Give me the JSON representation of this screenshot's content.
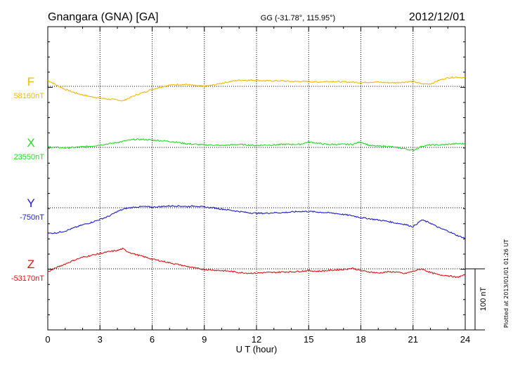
{
  "header": {
    "station": "Gnangara (GNA)  [GA]",
    "coords": "GG (-31.78°, 115.95°)",
    "date": "2012/12/01"
  },
  "footer": {
    "plotted": "Plotted at 2013/01/01 01:26 UT",
    "scale_label": "100 nT"
  },
  "chart_data": {
    "type": "line",
    "title": "Gnangara (GNA)  [GA]",
    "xlabel": "U T (hour)",
    "ylabel": "",
    "xlim": [
      0,
      24
    ],
    "xticks": [
      "0",
      "3",
      "6",
      "9",
      "12",
      "15",
      "18",
      "21",
      "24"
    ],
    "grid": true,
    "y_scale": "100 nT per scale bar, each component offset by its baseline",
    "series": [
      {
        "name": "F",
        "baseline_label": "58160nT",
        "baseline_nT": 58160,
        "color": "#f5b800",
        "x": [
          0,
          0.5,
          1,
          1.5,
          2,
          2.5,
          3,
          3.5,
          4,
          4.3,
          4.6,
          5,
          5.5,
          6,
          6.5,
          7,
          7.5,
          8,
          8.5,
          9,
          9.5,
          10,
          10.5,
          11,
          11.5,
          12,
          12.5,
          13,
          13.5,
          14,
          14.5,
          15,
          15.5,
          16,
          16.5,
          17,
          17.5,
          18,
          18.5,
          19,
          19.5,
          20,
          20.5,
          21,
          21.5,
          22,
          22.5,
          23,
          23.5,
          24
        ],
        "y": [
          10,
          2,
          -5,
          -10,
          -14,
          -17,
          -19,
          -21,
          -22,
          -24,
          -20,
          -15,
          -10,
          -5,
          -1,
          2,
          3,
          3,
          1,
          0,
          2,
          5,
          8,
          10,
          10,
          10,
          9,
          9,
          9,
          8,
          8,
          8,
          7,
          8,
          8,
          7,
          7,
          6,
          7,
          7,
          6,
          6,
          7,
          8,
          4,
          4,
          10,
          14,
          15,
          14
        ]
      },
      {
        "name": "X",
        "baseline_label": "23550nT",
        "baseline_nT": 23550,
        "color": "#22dd22",
        "x": [
          0,
          0.5,
          1,
          1.5,
          2,
          2.5,
          3,
          3.5,
          4,
          4.5,
          5,
          5.5,
          6,
          6.5,
          7,
          7.5,
          8,
          8.5,
          9,
          9.5,
          10,
          10.5,
          11,
          11.5,
          12,
          12.5,
          13,
          13.5,
          14,
          14.5,
          15,
          15.5,
          16,
          16.5,
          17,
          17.5,
          18,
          18.5,
          19,
          19.5,
          20,
          20.5,
          21,
          21.5,
          22,
          22.5,
          23,
          23.5,
          24
        ],
        "y": [
          1,
          0,
          -1,
          0,
          1,
          2,
          4,
          6,
          8,
          11,
          13,
          13,
          12,
          11,
          10,
          8,
          6,
          5,
          4,
          4,
          3,
          4,
          5,
          4,
          3,
          4,
          4,
          5,
          5,
          5,
          9,
          7,
          5,
          5,
          5,
          5,
          9,
          3,
          2,
          2,
          0,
          -2,
          -5,
          2,
          4,
          4,
          5,
          6,
          6
        ]
      },
      {
        "name": "Y",
        "baseline_label": "-750nT",
        "baseline_nT": -750,
        "color": "#1c1ccc",
        "x": [
          0,
          0.5,
          1,
          1.5,
          2,
          2.5,
          3,
          3.5,
          4,
          4.5,
          5,
          5.5,
          6,
          6.5,
          7,
          7.5,
          8,
          8.5,
          9,
          9.5,
          10,
          10.5,
          11,
          11.5,
          12,
          12.5,
          13,
          13.5,
          14,
          14.5,
          15,
          15.5,
          16,
          16.5,
          17,
          17.5,
          18,
          18.5,
          19,
          19.5,
          20,
          20.5,
          21,
          21.5,
          22,
          22.5,
          23,
          23.5,
          24
        ],
        "y": [
          -42,
          -41,
          -38,
          -33,
          -28,
          -24,
          -19,
          -14,
          -6,
          -1,
          1,
          2,
          1,
          2,
          3,
          3,
          2,
          3,
          1,
          0,
          -2,
          -4,
          -6,
          -8,
          -9,
          -9,
          -8,
          -8,
          -7,
          -6,
          -6,
          -7,
          -8,
          -9,
          -11,
          -13,
          -16,
          -18,
          -20,
          -22,
          -25,
          -27,
          -31,
          -20,
          -25,
          -33,
          -38,
          -45,
          -50
        ]
      },
      {
        "name": "Z",
        "baseline_label": "-53170nT",
        "baseline_nT": -53170,
        "color": "#dd1111",
        "x": [
          0,
          0.5,
          1,
          1.5,
          2,
          2.5,
          3,
          3.5,
          4,
          4.3,
          4.6,
          5,
          5.5,
          6,
          6.5,
          7,
          7.5,
          8,
          8.5,
          9,
          9.5,
          10,
          10.5,
          11,
          11.5,
          12,
          12.5,
          13,
          13.5,
          14,
          14.5,
          15,
          15.5,
          16,
          16.5,
          17,
          17.5,
          18,
          18.5,
          19,
          19.5,
          20,
          20.5,
          21,
          21.5,
          22,
          22.5,
          23,
          23.5,
          24
        ],
        "y": [
          -5,
          2,
          8,
          14,
          19,
          22,
          25,
          28,
          30,
          33,
          28,
          24,
          20,
          16,
          13,
          10,
          7,
          4,
          1,
          -1,
          -2,
          -3,
          -4,
          -6,
          -7,
          -7,
          -6,
          -6,
          -5,
          -5,
          -4,
          -3,
          -4,
          -3,
          -2,
          -1,
          1,
          -3,
          -5,
          -7,
          -5,
          -5,
          -8,
          -4,
          0,
          -6,
          -10,
          -11,
          -14,
          -10
        ]
      }
    ]
  }
}
